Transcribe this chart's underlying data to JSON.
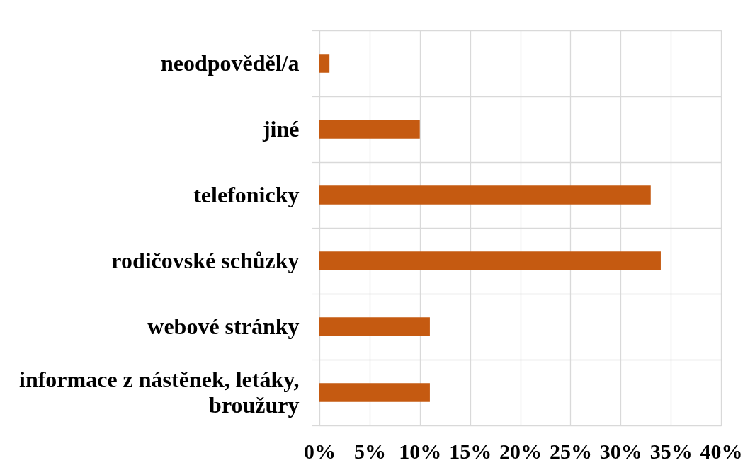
{
  "chart_data": {
    "type": "bar",
    "orientation": "horizontal",
    "categories": [
      "neodpověděl/a",
      "jiné",
      "telefonicky",
      "rodičovské schůzky",
      "webové stránky",
      "informace z nástěnek, letáky, broužury"
    ],
    "values": [
      1,
      10,
      33,
      34,
      11,
      11
    ],
    "color": "#c55a11",
    "xlim": [
      0,
      40
    ],
    "xticks": [
      {
        "value": 0,
        "label": "0%"
      },
      {
        "value": 5,
        "label": "5%"
      },
      {
        "value": 10,
        "label": "10%"
      },
      {
        "value": 15,
        "label": "15%"
      },
      {
        "value": 20,
        "label": "20%"
      },
      {
        "value": 25,
        "label": "25%"
      },
      {
        "value": 30,
        "label": "30%"
      },
      {
        "value": 35,
        "label": "35%"
      },
      {
        "value": 40,
        "label": "40%"
      }
    ],
    "grid": true
  }
}
